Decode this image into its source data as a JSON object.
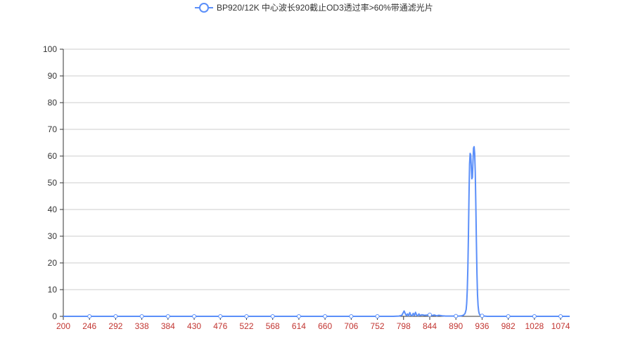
{
  "chart_data": {
    "type": "line",
    "title": "",
    "xlabel": "",
    "ylabel": "",
    "legend": {
      "position": "top-center",
      "entries": [
        "BP920/12K 中心波长920截止OD3透过率>60%带通滤光片"
      ]
    },
    "grid": {
      "y": true,
      "x": false
    },
    "xlim": [
      200,
      1090
    ],
    "ylim": [
      0,
      100
    ],
    "x_ticks": [
      200,
      246,
      292,
      338,
      384,
      430,
      476,
      522,
      568,
      614,
      660,
      706,
      752,
      798,
      844,
      890,
      936,
      982,
      1028,
      1074
    ],
    "y_ticks": [
      0,
      10,
      20,
      30,
      40,
      50,
      60,
      70,
      80,
      90,
      100
    ],
    "colors": {
      "series": "#5b8ff9",
      "x_tick_labels": "#c23531",
      "y_tick_labels": "#333333",
      "grid": "#cccccc"
    },
    "series": [
      {
        "name": "BP920/12K 中心波长920截止OD3透过率>60%带通滤光片",
        "x": [
          200,
          246,
          292,
          338,
          384,
          430,
          476,
          522,
          568,
          614,
          660,
          706,
          752,
          780,
          790,
          795,
          797,
          799,
          801,
          803,
          805,
          807,
          809,
          811,
          813,
          815,
          817,
          819,
          821,
          823,
          825,
          827,
          830,
          835,
          840,
          844,
          848,
          852,
          856,
          860,
          866,
          872,
          880,
          890,
          896,
          900,
          903,
          906,
          908,
          909,
          910,
          911,
          912,
          913,
          914,
          915,
          916,
          917,
          918,
          919,
          920,
          921,
          922,
          923,
          924,
          925,
          926,
          927,
          928,
          929,
          930,
          931,
          932,
          933,
          934,
          935,
          936,
          938,
          940,
          945,
          950,
          960,
          982,
          1000,
          1028,
          1050,
          1074,
          1090
        ],
        "y": [
          0,
          0,
          0,
          0,
          0,
          0,
          0,
          0,
          0,
          0,
          0,
          0,
          0,
          0,
          0.1,
          0.4,
          1.2,
          2.0,
          1.0,
          0.3,
          0.9,
          0.2,
          1.4,
          0.4,
          0.2,
          1.1,
          0.3,
          1.5,
          0.5,
          0.2,
          0.9,
          0.3,
          0.6,
          0.4,
          0.5,
          0.6,
          0.3,
          0.5,
          0.2,
          0.4,
          0.2,
          0.1,
          0.1,
          0.1,
          0.1,
          0.2,
          0.4,
          1.0,
          2.5,
          5.0,
          10.0,
          18.0,
          30.0,
          45.0,
          57.0,
          61.0,
          60.5,
          56.0,
          51.5,
          52.0,
          58.0,
          63.0,
          63.5,
          61.0,
          54.0,
          42.0,
          28.0,
          16.0,
          8.0,
          4.0,
          2.0,
          1.0,
          0.6,
          0.4,
          0.3,
          0.2,
          0.2,
          0.1,
          0.1,
          0,
          0,
          0,
          0,
          0,
          0,
          0,
          0,
          0
        ]
      }
    ]
  }
}
